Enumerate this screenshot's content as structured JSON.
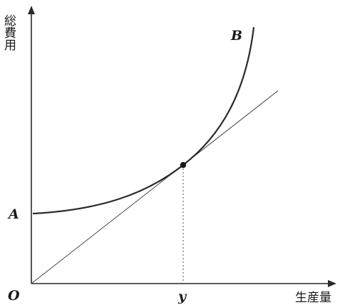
{
  "diagram": {
    "y_axis_label": "総費用",
    "x_axis_label": "生産量",
    "origin_label": "O",
    "intercept_label": "A",
    "curve_label": "B",
    "tangent_x_label": "y"
  },
  "colors": {
    "ink": "#2a2a2a",
    "background": "#ffffff"
  }
}
